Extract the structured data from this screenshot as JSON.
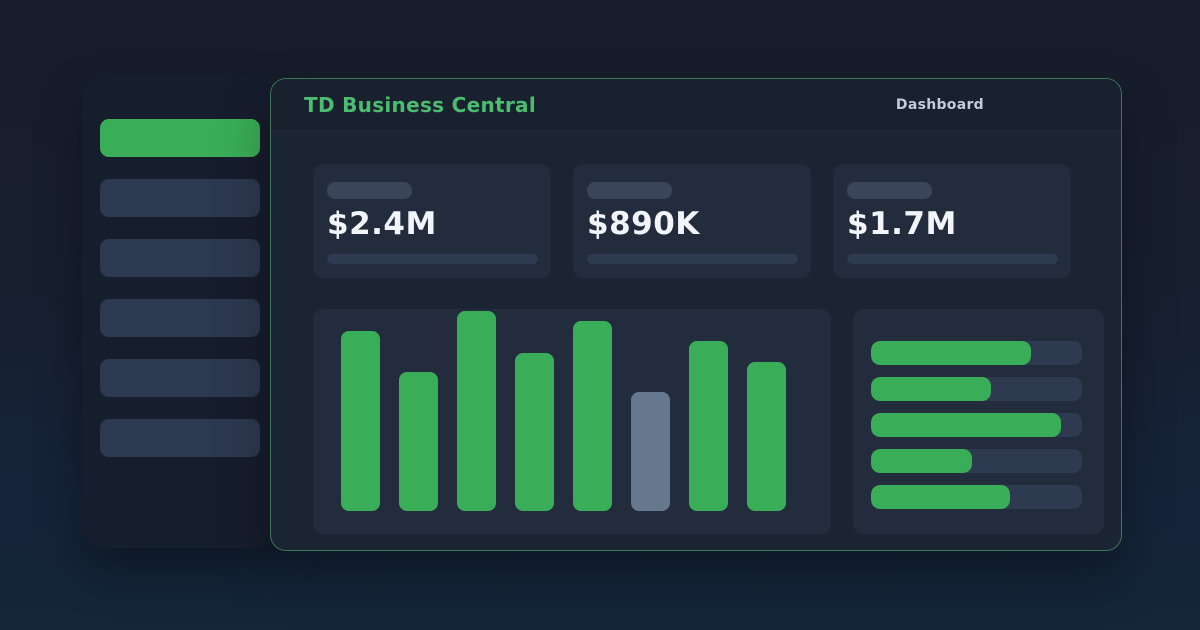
{
  "theme": {
    "accent_green": "#3aad58",
    "title_green": "#4bbd70",
    "muted_bar": "#66788e",
    "sidebar_bg": "#161d2d",
    "sidebar_item": "#2d3950",
    "panel_bg": "#1b2433",
    "card_bg": "#222c3d",
    "skeleton": "#2d3a4f",
    "value_text": "#f1f5f9",
    "nav_text": "#c3ccd9"
  },
  "header": {
    "title": "TD Business Central",
    "nav_label": "Dashboard"
  },
  "sidebar": {
    "items": [
      {
        "active": true
      },
      {
        "active": false
      },
      {
        "active": false
      },
      {
        "active": false
      },
      {
        "active": false
      },
      {
        "active": false
      }
    ]
  },
  "kpi_cards": [
    {
      "value": "$2.4M"
    },
    {
      "value": "$890K"
    },
    {
      "value": "$1.7M"
    }
  ],
  "bar_chart": {
    "type": "bar",
    "values": [
      89,
      69,
      99,
      78,
      94,
      59,
      84,
      74
    ],
    "muted_index": 5,
    "bar_color": "#3aad58",
    "muted_color": "#66788e"
  },
  "progress_panel": {
    "rows_pct": [
      76,
      57,
      90,
      48,
      66
    ],
    "fill_color": "#3aad58",
    "track_color": "#2d3a4f"
  }
}
